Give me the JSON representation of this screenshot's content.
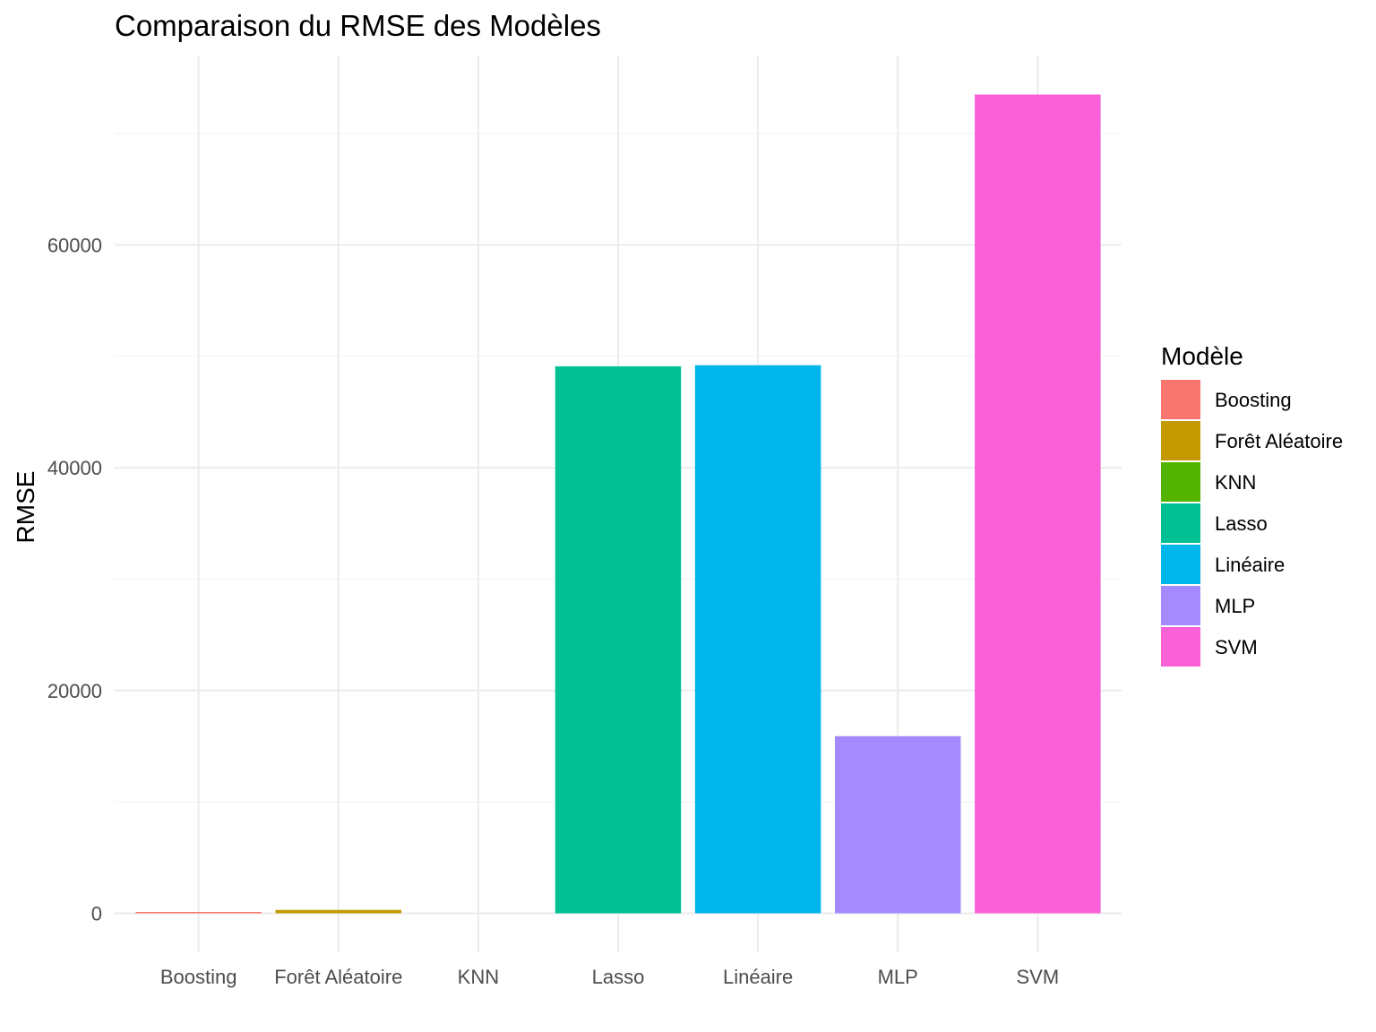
{
  "chart_data": {
    "type": "bar",
    "title": "Comparaison du RMSE des Modèles",
    "xlabel": "",
    "ylabel": "RMSE",
    "categories": [
      "Boosting",
      "Forêt Aléatoire",
      "KNN",
      "Lasso",
      "Linéaire",
      "MLP",
      "SVM"
    ],
    "values": [
      80,
      300,
      0,
      49100,
      49200,
      15900,
      73500
    ],
    "colors": [
      "#F8766D",
      "#C49A00",
      "#53B400",
      "#00C094",
      "#00B6EB",
      "#A58AFF",
      "#FB61D7"
    ],
    "ylim": [
      -3500,
      77000
    ],
    "yticks": [
      0,
      20000,
      40000,
      60000
    ],
    "grid": true,
    "legend": {
      "title": "Modèle",
      "placement": "right",
      "entries": [
        "Boosting",
        "Forêt Aléatoire",
        "KNN",
        "Lasso",
        "Linéaire",
        "MLP",
        "SVM"
      ]
    }
  }
}
